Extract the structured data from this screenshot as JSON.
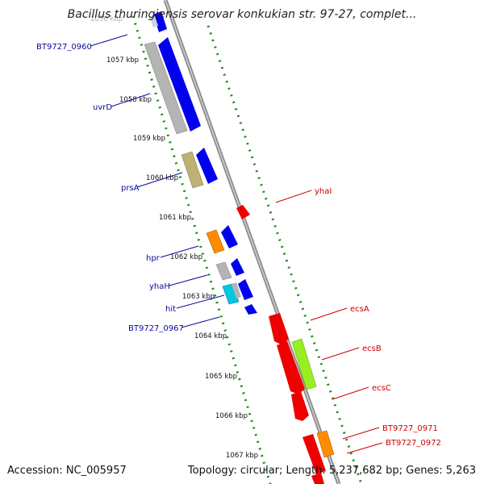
{
  "title": "Bacillus thuringiensis serovar konkukian str. 97-27, complet...",
  "accession": "Accession: NC_005957",
  "topology": "Topology: circular; Length: 5,237,682 bp; Genes: 5,263",
  "ticks": [
    {
      "label": "1056 kbp"
    },
    {
      "label": "1057 kbp"
    },
    {
      "label": "1058 kbp"
    },
    {
      "label": "1059 kbp"
    },
    {
      "label": "1060 kbp"
    },
    {
      "label": "1061 kbp"
    },
    {
      "label": "1062 kbp"
    },
    {
      "label": "1063 kbp"
    },
    {
      "label": "1064 kbp"
    },
    {
      "label": "1065 kbp"
    },
    {
      "label": "1066 kbp"
    },
    {
      "label": "1067 kbp"
    }
  ],
  "left_labels": [
    {
      "text": "BT9727_0960"
    },
    {
      "text": "uvrD"
    },
    {
      "text": "prsA"
    },
    {
      "text": "hpr"
    },
    {
      "text": "yhaH"
    },
    {
      "text": "hit"
    },
    {
      "text": "BT9727_0967"
    }
  ],
  "right_labels": [
    {
      "text": "yhaI"
    },
    {
      "text": "ecsA"
    },
    {
      "text": "ecsB"
    },
    {
      "text": "ecsC"
    },
    {
      "text": "BT9727_0971"
    },
    {
      "text": "BT9727_0972"
    }
  ],
  "colors": {
    "forward_cds": "#0000ee",
    "reverse_cds": "#ee0000",
    "gray_gene": "#b4b4b4",
    "olive_gene": "#bdb176",
    "orange_gene": "#ff8c00",
    "cyan_gene": "#00c8e0",
    "green_gene": "#99ee22",
    "backbone": "#8c8c8c",
    "gc_dots": "#1a8a1a",
    "blue_label": "#0a0a9a",
    "red_label": "#cc0000"
  }
}
